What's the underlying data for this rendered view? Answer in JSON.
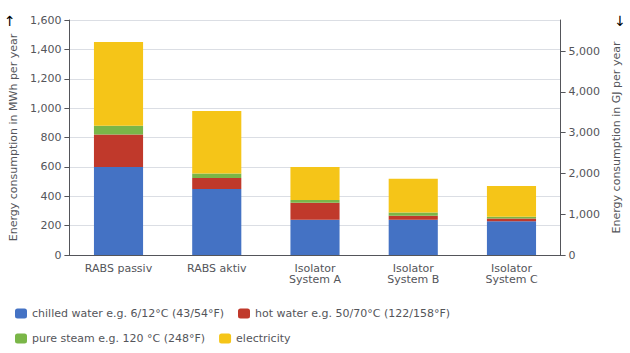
{
  "chart_data": {
    "type": "bar",
    "stacked": true,
    "categories": [
      "RABS passiv",
      "RABS aktiv",
      "Isolator\nSystem A",
      "Isolator\nSystem B",
      "Isolator\nSystem C"
    ],
    "series": [
      {
        "name": "chilled water e.g. 6/12°C (43/54°F)",
        "color": "#4472c4",
        "values": [
          600,
          450,
          240,
          240,
          230
        ]
      },
      {
        "name": "hot water e.g. 50/70°C (122/158°F)",
        "color": "#c0392b",
        "values": [
          220,
          75,
          115,
          28,
          18
        ]
      },
      {
        "name": "pure steam e.g. 120 °C (248°F)",
        "color": "#7ab648",
        "values": [
          60,
          30,
          20,
          22,
          12
        ]
      },
      {
        "name": "electricity",
        "color": "#f5c518",
        "values": [
          570,
          425,
          225,
          230,
          210
        ]
      }
    ],
    "ylabel": "Energy consumption in MWh per year",
    "y2label": "Energy consumption in GJ per year",
    "ylim": [
      0,
      1600
    ],
    "yticks": [
      0,
      200,
      400,
      600,
      800,
      1000,
      1200,
      1400,
      1600
    ],
    "y2lim": [
      0,
      5760
    ],
    "y2ticks": [
      0,
      1000,
      2000,
      3000,
      4000,
      5000
    ],
    "annotations": [
      "↑",
      "↓"
    ],
    "grid": true,
    "legend": "lower left"
  }
}
